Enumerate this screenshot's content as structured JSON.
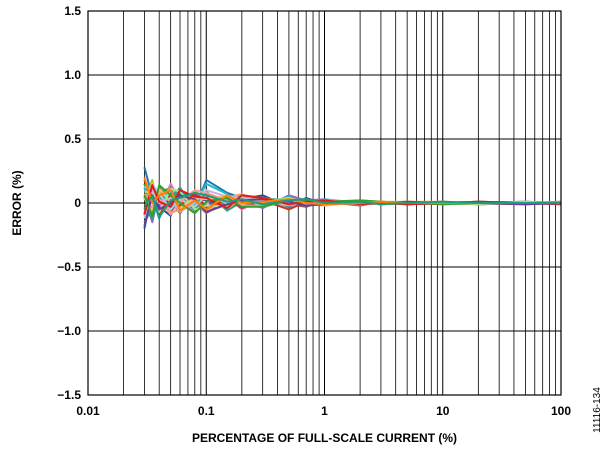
{
  "figure_id": "11116-134",
  "chart_data": {
    "type": "line",
    "xscale": "log",
    "xlabel": "PERCENTAGE OF FULL-SCALE CURRENT (%)",
    "ylabel": "ERROR (%)",
    "xlim": [
      0.01,
      100
    ],
    "ylim": [
      -1.5,
      1.5
    ],
    "grid": true,
    "legend": "none",
    "x_ticks": [
      0.01,
      0.1,
      1,
      10,
      100
    ],
    "x_tick_labels": [
      "0.01",
      "0.1",
      "1",
      "10",
      "100"
    ],
    "y_ticks": [
      1.5,
      1.0,
      0.5,
      0,
      -0.5,
      -1.0,
      -1.5
    ],
    "y_tick_labels": [
      "1.5",
      "1.0",
      "0.5",
      "0",
      "−0.5",
      "−1.0",
      "−1.5"
    ],
    "x": [
      0.03,
      0.035,
      0.04,
      0.05,
      0.06,
      0.08,
      0.1,
      0.15,
      0.2,
      0.3,
      0.5,
      0.7,
      1,
      2,
      3,
      5,
      10,
      20,
      50,
      100
    ],
    "series": [
      {
        "color": "#1f77b4",
        "values": [
          0.28,
          0.05,
          -0.12,
          0.08,
          0.02,
          -0.05,
          0.18,
          0.08,
          0.04,
          0.02,
          -0.03,
          0.02,
          0.01,
          -0.01,
          0.01,
          0.0,
          0.0,
          -0.01,
          0.0,
          0.0
        ]
      },
      {
        "color": "#ff7f0e",
        "values": [
          -0.08,
          0.12,
          0.05,
          -0.04,
          0.06,
          0.03,
          -0.05,
          0.03,
          0.05,
          0.02,
          0.03,
          -0.02,
          0.02,
          0.0,
          -0.01,
          0.01,
          0.0,
          -0.01,
          0.0,
          0.0
        ]
      },
      {
        "color": "#2ca02c",
        "values": [
          0.15,
          -0.1,
          0.08,
          0.12,
          -0.06,
          0.04,
          0.02,
          -0.02,
          0.03,
          -0.03,
          0.02,
          0.01,
          -0.01,
          0.0,
          0.01,
          -0.01,
          0.0,
          0.0,
          -0.01,
          0.0
        ]
      },
      {
        "color": "#d62728",
        "values": [
          -0.05,
          0.08,
          -0.09,
          0.06,
          0.1,
          -0.04,
          0.05,
          0.04,
          -0.03,
          0.04,
          -0.02,
          0.03,
          0.0,
          0.01,
          0.0,
          0.0,
          0.01,
          -0.01,
          0.0,
          -0.01
        ]
      },
      {
        "color": "#9467bd",
        "values": [
          0.05,
          -0.15,
          0.1,
          -0.06,
          0.04,
          0.08,
          -0.03,
          0.06,
          0.02,
          -0.04,
          0.06,
          0.02,
          0.03,
          -0.01,
          0.0,
          0.01,
          -0.01,
          0.0,
          0.01,
          0.0
        ]
      },
      {
        "color": "#8c564b",
        "values": [
          -0.1,
          0.03,
          0.06,
          0.02,
          -0.08,
          0.05,
          0.07,
          -0.04,
          0.04,
          0.01,
          -0.01,
          -0.03,
          0.02,
          0.01,
          -0.01,
          0.0,
          0.0,
          0.01,
          0.0,
          0.0
        ]
      },
      {
        "color": "#e377c2",
        "values": [
          0.1,
          0.06,
          -0.04,
          0.15,
          0.02,
          -0.07,
          0.0,
          0.05,
          -0.05,
          0.03,
          0.02,
          0.0,
          -0.02,
          0.02,
          0.01,
          -0.01,
          0.0,
          0.0,
          0.0,
          0.01
        ]
      },
      {
        "color": "#7f7f7f",
        "values": [
          -0.15,
          -0.04,
          0.13,
          -0.02,
          0.07,
          0.01,
          -0.08,
          0.02,
          0.06,
          -0.02,
          0.04,
          0.01,
          0.01,
          -0.02,
          0.01,
          0.0,
          0.01,
          0.0,
          -0.01,
          0.0
        ]
      },
      {
        "color": "#bcbd22",
        "values": [
          0.02,
          0.18,
          -0.06,
          0.05,
          -0.03,
          0.09,
          0.04,
          -0.05,
          0.02,
          0.05,
          -0.04,
          0.02,
          0.0,
          0.01,
          -0.01,
          0.01,
          0.0,
          0.0,
          0.0,
          0.0
        ]
      },
      {
        "color": "#17becf",
        "values": [
          0.12,
          -0.08,
          0.02,
          0.09,
          0.05,
          -0.02,
          0.15,
          0.07,
          -0.02,
          -0.01,
          0.05,
          -0.01,
          0.03,
          0.0,
          0.0,
          0.0,
          -0.01,
          0.01,
          0.0,
          0.0
        ]
      },
      {
        "color": "#1a55a0",
        "values": [
          -0.2,
          0.1,
          -0.03,
          -0.1,
          0.08,
          0.06,
          0.02,
          -0.03,
          0.03,
          0.06,
          -0.03,
          0.04,
          -0.01,
          0.01,
          0.01,
          -0.01,
          0.0,
          0.0,
          0.01,
          0.0
        ]
      },
      {
        "color": "#f4a261",
        "values": [
          0.07,
          0.02,
          0.09,
          -0.08,
          -0.05,
          0.02,
          -0.06,
          0.04,
          0.07,
          0.0,
          0.01,
          -0.02,
          0.02,
          -0.01,
          0.0,
          0.01,
          0.01,
          -0.01,
          0.0,
          0.0
        ]
      },
      {
        "color": "#2a9d8f",
        "values": [
          -0.03,
          -0.12,
          0.04,
          0.03,
          0.12,
          -0.06,
          0.09,
          -0.06,
          0.01,
          0.03,
          0.03,
          0.02,
          0.01,
          0.0,
          -0.01,
          0.0,
          0.0,
          0.0,
          0.0,
          0.0
        ]
      },
      {
        "color": "#c0392b",
        "values": [
          0.18,
          0.04,
          -0.1,
          0.07,
          -0.02,
          0.07,
          -0.04,
          0.03,
          -0.04,
          0.02,
          -0.05,
          0.01,
          0.0,
          0.02,
          0.0,
          -0.01,
          0.0,
          0.01,
          0.0,
          -0.01
        ]
      },
      {
        "color": "#a6cee3",
        "values": [
          -0.12,
          0.15,
          0.07,
          -0.05,
          0.03,
          -0.03,
          0.06,
          0.0,
          0.05,
          -0.03,
          0.02,
          -0.01,
          0.02,
          0.0,
          0.01,
          0.0,
          -0.01,
          0.0,
          0.0,
          0.0
        ]
      },
      {
        "color": "#fdbf6f",
        "values": [
          0.04,
          -0.06,
          0.11,
          0.01,
          -0.04,
          0.04,
          0.03,
          0.06,
          -0.01,
          0.04,
          0.0,
          0.03,
          -0.02,
          0.01,
          0.0,
          0.0,
          0.0,
          0.0,
          0.01,
          0.0
        ]
      },
      {
        "color": "#b2df8a",
        "values": [
          0.09,
          0.08,
          -0.07,
          0.11,
          0.09,
          -0.05,
          -0.02,
          -0.03,
          0.03,
          0.01,
          0.04,
          0.0,
          0.01,
          -0.01,
          0.01,
          0.01,
          0.0,
          -0.01,
          0.0,
          0.0
        ]
      },
      {
        "color": "#fb9a99",
        "values": [
          -0.06,
          -0.02,
          0.03,
          -0.09,
          0.01,
          0.1,
          0.08,
          0.02,
          -0.02,
          -0.02,
          0.03,
          0.02,
          0.0,
          0.0,
          -0.01,
          0.0,
          0.01,
          0.0,
          0.0,
          0.0
        ]
      },
      {
        "color": "#cab2d6",
        "values": [
          0.13,
          0.1,
          0.0,
          0.04,
          -0.07,
          0.0,
          0.1,
          0.05,
          0.04,
          0.02,
          -0.02,
          0.01,
          0.02,
          0.01,
          0.0,
          0.0,
          0.0,
          0.0,
          0.0,
          0.0
        ]
      },
      {
        "color": "#6a3d9a",
        "values": [
          -0.18,
          0.06,
          -0.05,
          0.0,
          0.06,
          0.03,
          -0.07,
          -0.01,
          0.02,
          0.03,
          0.01,
          -0.02,
          -0.01,
          0.0,
          0.0,
          0.01,
          0.0,
          0.0,
          -0.01,
          0.0
        ]
      },
      {
        "color": "#33a02c",
        "values": [
          0.06,
          -0.1,
          0.14,
          0.06,
          0.0,
          -0.08,
          0.01,
          0.04,
          -0.03,
          -0.03,
          0.02,
          0.02,
          0.01,
          0.02,
          0.01,
          0.0,
          -0.01,
          0.0,
          0.0,
          0.0
        ]
      },
      {
        "color": "#e31a1c",
        "values": [
          -0.09,
          0.14,
          0.01,
          -0.03,
          0.1,
          0.05,
          0.04,
          -0.04,
          0.06,
          0.04,
          -0.01,
          0.01,
          0.02,
          -0.01,
          0.0,
          -0.01,
          0.0,
          0.01,
          0.0,
          0.0
        ]
      },
      {
        "color": "#ff7f00",
        "values": [
          0.2,
          0.0,
          0.06,
          0.1,
          -0.06,
          0.02,
          -0.05,
          0.06,
          0.0,
          0.01,
          0.03,
          0.0,
          -0.01,
          0.0,
          0.01,
          0.0,
          0.0,
          0.0,
          0.0,
          0.01
        ]
      },
      {
        "color": "#1b9e77",
        "values": [
          -0.02,
          0.05,
          -0.11,
          0.02,
          0.04,
          0.08,
          0.06,
          0.01,
          0.03,
          -0.01,
          0.02,
          0.03,
          0.0,
          0.01,
          -0.01,
          0.0,
          0.01,
          0.0,
          0.0,
          0.0
        ]
      }
    ]
  }
}
